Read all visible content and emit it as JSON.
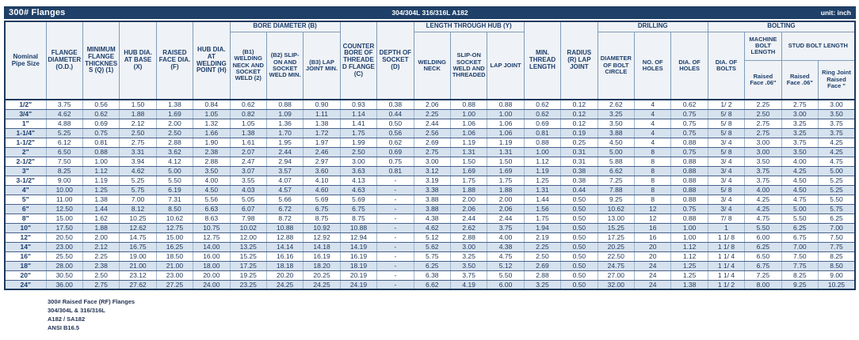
{
  "title_bar": {
    "title": "300# Flanges",
    "material": "304/304L 316/316L A182",
    "unit": "unit: inch"
  },
  "colors": {
    "title_bar": "#1F4068",
    "zebra_row": "#D7E2EF",
    "header_bg": "#EFF2F6",
    "accent_text": "#1D3E6B"
  },
  "table": {
    "header": {
      "pipe_size": "Nominal Pipe Size",
      "od": "FLANGE DIAMETER (O.D.)",
      "thickness": "MINIMUM FLANGE THICKNESS (Q) (1)",
      "hub_dia_base": "HUB DIA. AT BASE (X)",
      "raised_face_dia": "RAISED FACE DIA. (F)",
      "hub_dia_weld": "HUB DIA. AT WELDING POINT (H)",
      "bore_group": "BORE DIAMETER (B)",
      "b1": "(B1) WELDING NECK AND SOCKET WELD (2)",
      "b2": "(B2) SLIP-ON AND SOCKET WELD MIN.",
      "b3": "(B3) LAP JOINT MIN.",
      "counter_bore": "COUNTER BORE OF THREADED FLANGE (C)",
      "socket_depth": "DEPTH OF SOCKET (D)",
      "hub_length_group": "LENGTH THROUGH HUB (Y)",
      "welding_neck": "WELDING NECK",
      "slip_on": "SLIP-ON SOCKET WELD AND THREADED",
      "lap_joint": "LAP JOINT",
      "min_thread": "MIN. THREAD LENGTH",
      "radius": "RADIUS (R) LAP JOINT",
      "drilling_group": "DRILLING",
      "bolt_circle": "DIAMETER OF BOLT CIRCLE",
      "num_holes": "NO. OF HOLES",
      "dia_holes": "DIA. OF HOLES",
      "bolting_group": "BOLTING",
      "dia_bolts": "DIA. OF BOLTS",
      "machine_bolt": "MACHINE BOLT LENGTH",
      "stud_bolt": "STUD BOLT LENGTH",
      "machine_rf": "Raised Face .06\"",
      "stud_rf": "Raised Face .06\"",
      "stud_rj": "Ring Joint Raised Face \""
    },
    "rows": [
      [
        "1/2\"",
        "3.75",
        "0.56",
        "1.50",
        "1.38",
        "0.84",
        "0.62",
        "0.88",
        "0.90",
        "0.93",
        "0.38",
        "2.06",
        "0.88",
        "0.88",
        "0.62",
        "0.12",
        "2.62",
        "4",
        "0.62",
        "1/ 2",
        "2.25",
        "2.75",
        "3.00"
      ],
      [
        "3/4\"",
        "4.62",
        "0.62",
        "1.88",
        "1.69",
        "1.05",
        "0.82",
        "1.09",
        "1.11",
        "1.14",
        "0.44",
        "2.25",
        "1.00",
        "1.00",
        "0.62",
        "0.12",
        "3.25",
        "4",
        "0.75",
        "5/ 8",
        "2.50",
        "3.00",
        "3.50"
      ],
      [
        "1\"",
        "4.88",
        "0.69",
        "2.12",
        "2.00",
        "1.32",
        "1.05",
        "1.36",
        "1.38",
        "1.41",
        "0.50",
        "2.44",
        "1.06",
        "1.06",
        "0.69",
        "0.12",
        "3.50",
        "4",
        "0.75",
        "5/ 8",
        "2.75",
        "3.25",
        "3.75"
      ],
      [
        "1-1/4\"",
        "5.25",
        "0.75",
        "2.50",
        "2.50",
        "1.66",
        "1.38",
        "1.70",
        "1.72",
        "1.75",
        "0.56",
        "2.56",
        "1.06",
        "1.06",
        "0.81",
        "0.19",
        "3.88",
        "4",
        "0.75",
        "5/ 8",
        "2.75",
        "3.25",
        "3.75"
      ],
      [
        "1-1/2\"",
        "6.12",
        "0.81",
        "2.75",
        "2.88",
        "1.90",
        "1.61",
        "1.95",
        "1.97",
        "1.99",
        "0.62",
        "2.69",
        "1.19",
        "1.19",
        "0.88",
        "0.25",
        "4.50",
        "4",
        "0.88",
        "3/ 4",
        "3.00",
        "3.75",
        "4.25"
      ],
      [
        "2\"",
        "6.50",
        "0.88",
        "3.31",
        "3.62",
        "2.38",
        "2.07",
        "2.44",
        "2.46",
        "2.50",
        "0.69",
        "2.75",
        "1.31",
        "1.31",
        "1.00",
        "0.31",
        "5.00",
        "8",
        "0.75",
        "5/ 8",
        "3.00",
        "3.50",
        "4.25"
      ],
      [
        "2-1/2\"",
        "7.50",
        "1.00",
        "3.94",
        "4.12",
        "2.88",
        "2.47",
        "2.94",
        "2.97",
        "3.00",
        "0.75",
        "3.00",
        "1.50",
        "1.50",
        "1.12",
        "0.31",
        "5.88",
        "8",
        "0.88",
        "3/ 4",
        "3.50",
        "4.00",
        "4.75"
      ],
      [
        "3\"",
        "8.25",
        "1.12",
        "4.62",
        "5.00",
        "3.50",
        "3.07",
        "3.57",
        "3.60",
        "3.63",
        "0.81",
        "3.12",
        "1.69",
        "1.69",
        "1.19",
        "0.38",
        "6.62",
        "8",
        "0.88",
        "3/ 4",
        "3.75",
        "4.25",
        "5.00"
      ],
      [
        "3-1/2\"",
        "9.00",
        "1.19",
        "5.25",
        "5.50",
        "4.00",
        "3.55",
        "4.07",
        "4.10",
        "4.13",
        "-",
        "3.19",
        "1.75",
        "1.75",
        "1.25",
        "0.38",
        "7.25",
        "8",
        "0.88",
        "3/ 4",
        "3.75",
        "4.50",
        "5.25"
      ],
      [
        "4\"",
        "10.00",
        "1.25",
        "5.75",
        "6.19",
        "4.50",
        "4.03",
        "4.57",
        "4.60",
        "4.63",
        "-",
        "3.38",
        "1.88",
        "1.88",
        "1.31",
        "0.44",
        "7.88",
        "8",
        "0.88",
        "5/ 8",
        "4.00",
        "4.50",
        "5.25"
      ],
      [
        "5\"",
        "11.00",
        "1.38",
        "7.00",
        "7.31",
        "5.56",
        "5.05",
        "5.66",
        "5.69",
        "5.69",
        "-",
        "3.88",
        "2.00",
        "2.00",
        "1.44",
        "0.50",
        "9.25",
        "8",
        "0.88",
        "3/ 4",
        "4.25",
        "4.75",
        "5.50"
      ],
      [
        "6\"",
        "12.50",
        "1.44",
        "8.12",
        "8.50",
        "6.63",
        "6.07",
        "6.72",
        "6.75",
        "6.75",
        "-",
        "3.88",
        "2.06",
        "2.06",
        "1.56",
        "0.50",
        "10.62",
        "12",
        "0.75",
        "3/ 4",
        "4.25",
        "5.00",
        "5.75"
      ],
      [
        "8\"",
        "15.00",
        "1.62",
        "10.25",
        "10.62",
        "8.63",
        "7.98",
        "8.72",
        "8.75",
        "8.75",
        "-",
        "4.38",
        "2.44",
        "2.44",
        "1.75",
        "0.50",
        "13.00",
        "12",
        "0.88",
        "7/ 8",
        "4.75",
        "5.50",
        "6.25"
      ],
      [
        "10\"",
        "17.50",
        "1.88",
        "12.62",
        "12.75",
        "10.75",
        "10.02",
        "10.88",
        "10.92",
        "10.88",
        "-",
        "4.62",
        "2.62",
        "3.75",
        "1.94",
        "0.50",
        "15.25",
        "16",
        "1.00",
        "1",
        "5.50",
        "6.25",
        "7.00"
      ],
      [
        "12\"",
        "20.50",
        "2.00",
        "14.75",
        "15.00",
        "12.75",
        "12.00",
        "12.88",
        "12.92",
        "12.94",
        "-",
        "5.12",
        "2.88",
        "4.00",
        "2.19",
        "0.50",
        "17.25",
        "16",
        "1.00",
        "1 1/ 8",
        "6.00",
        "6.75",
        "7.50"
      ],
      [
        "14\"",
        "23.00",
        "2.12",
        "16.75",
        "16.25",
        "14.00",
        "13.25",
        "14.14",
        "14.18",
        "14.19",
        "-",
        "5.62",
        "3.00",
        "4.38",
        "2.25",
        "0.50",
        "20.25",
        "20",
        "1.12",
        "1 1/ 8",
        "6.25",
        "7.00",
        "7.75"
      ],
      [
        "16\"",
        "25.50",
        "2.25",
        "19.00",
        "18.50",
        "16.00",
        "15.25",
        "16.16",
        "16.19",
        "16.19",
        "-",
        "5.75",
        "3.25",
        "4.75",
        "2.50",
        "0.50",
        "22.50",
        "20",
        "1.12",
        "1 1/ 4",
        "6.50",
        "7.50",
        "8.25"
      ],
      [
        "18\"",
        "28.00",
        "2.38",
        "21.00",
        "21.00",
        "18.00",
        "17.25",
        "18.18",
        "18.20",
        "18.19",
        "-",
        "6.25",
        "3.50",
        "5.12",
        "2.69",
        "0.50",
        "24.75",
        "24",
        "1.25",
        "1 1/ 4",
        "6.75",
        "7.75",
        "8.50"
      ],
      [
        "20\"",
        "30.50",
        "2.50",
        "23.12",
        "23.00",
        "20.00",
        "19.25",
        "20.20",
        "20.25",
        "20.19",
        "-",
        "6.38",
        "3.75",
        "5.50",
        "2.88",
        "0.50",
        "27.00",
        "24",
        "1.25",
        "1 1/ 4",
        "7.25",
        "8.25",
        "9.00"
      ],
      [
        "24\"",
        "36.00",
        "2.75",
        "27.62",
        "27.25",
        "24.00",
        "23.25",
        "24.25",
        "24.25",
        "24.19",
        "-",
        "6.62",
        "4.19",
        "6.00",
        "3.25",
        "0.50",
        "32.00",
        "24",
        "1.38",
        "1 1/ 2",
        "8.00",
        "9.25",
        "10.25"
      ]
    ]
  },
  "footnotes": [
    "300# Raised Face (RF) Flanges",
    "304/304L & 316/316L",
    "A182 / SA182",
    "ANSI B16.5"
  ]
}
